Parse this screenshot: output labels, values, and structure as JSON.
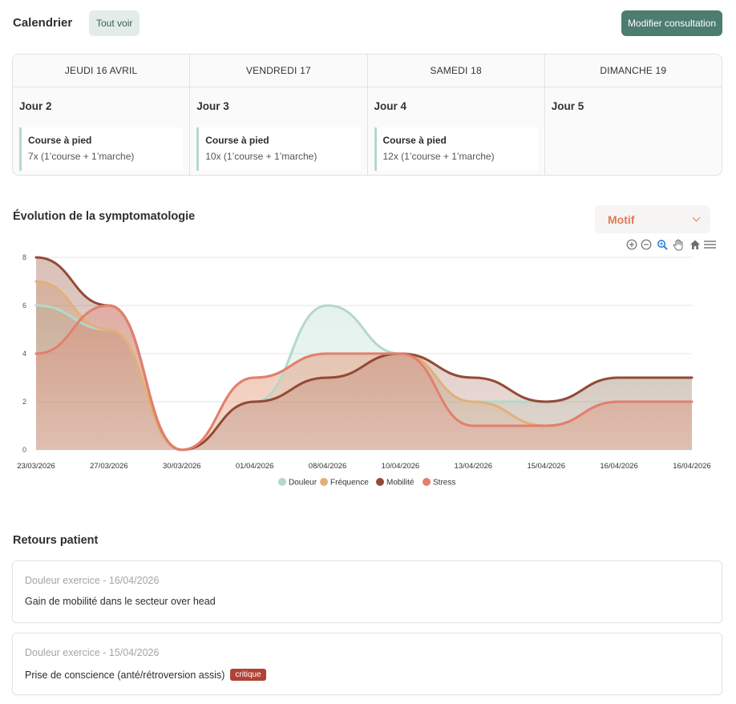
{
  "header": {
    "title": "Calendrier",
    "see_all_label": "Tout voir",
    "edit_label": "Modifier consultation"
  },
  "calendar": {
    "days": [
      {
        "header": "JEUDI 16 AVRIL",
        "label": "Jour 2",
        "session": {
          "title": "Course à pied",
          "detail": "7x (1’course + 1’marche)"
        }
      },
      {
        "header": "VENDREDI 17",
        "label": "Jour 3",
        "session": {
          "title": "Course à pied",
          "detail": "10x (1’course + 1’marche)"
        }
      },
      {
        "header": "SAMEDI 18",
        "label": "Jour 4",
        "session": {
          "title": "Course à pied",
          "detail": "12x (1’course + 1’marche)"
        }
      },
      {
        "header": "DIMANCHE 19",
        "label": "Jour 5",
        "session": null
      }
    ]
  },
  "symptoms": {
    "title": "Évolution de la symptomatologie",
    "filter_label": "Motif",
    "toolbar_icons": [
      "zoom-in-icon",
      "zoom-out-icon",
      "zoom-selection-icon",
      "pan-hand-icon",
      "reset-home-icon",
      "menu-icon"
    ]
  },
  "chart_data": {
    "type": "area",
    "categories": [
      "23/03/2026",
      "27/03/2026",
      "30/03/2026",
      "01/04/2026",
      "08/04/2026",
      "10/04/2026",
      "13/04/2026",
      "15/04/2026",
      "16/04/2026",
      "16/04/2026"
    ],
    "ylim": [
      0,
      8
    ],
    "yticks": [
      0,
      2,
      4,
      6,
      8
    ],
    "grid": true,
    "legend_position": "bottom",
    "series": [
      {
        "name": "Douleur",
        "color": "#b3d9c9",
        "values": [
          6,
          5,
          0,
          2,
          6,
          4,
          2,
          2,
          3,
          3
        ]
      },
      {
        "name": "Fréquence",
        "color": "#e2b07a",
        "values": [
          7,
          5,
          0,
          3,
          4,
          4,
          2,
          1,
          2,
          2
        ]
      },
      {
        "name": "Mobilité",
        "color": "#944a36",
        "values": [
          8,
          6,
          0,
          2,
          3,
          4,
          3,
          2,
          3,
          3
        ]
      },
      {
        "name": "Stress",
        "color": "#e27f6d",
        "values": [
          4,
          6,
          0,
          3,
          4,
          4,
          1,
          1,
          2,
          2
        ]
      }
    ]
  },
  "feedback": {
    "title": "Retours patient",
    "items": [
      {
        "date": "Douleur exercice - 16/04/2026",
        "text": "Gain de mobilité dans le secteur over head",
        "badge": ""
      },
      {
        "date": "Douleur exercice - 15/04/2026",
        "text": "Prise de conscience (anté/rétroversion assis)",
        "badge": "critique"
      }
    ]
  }
}
